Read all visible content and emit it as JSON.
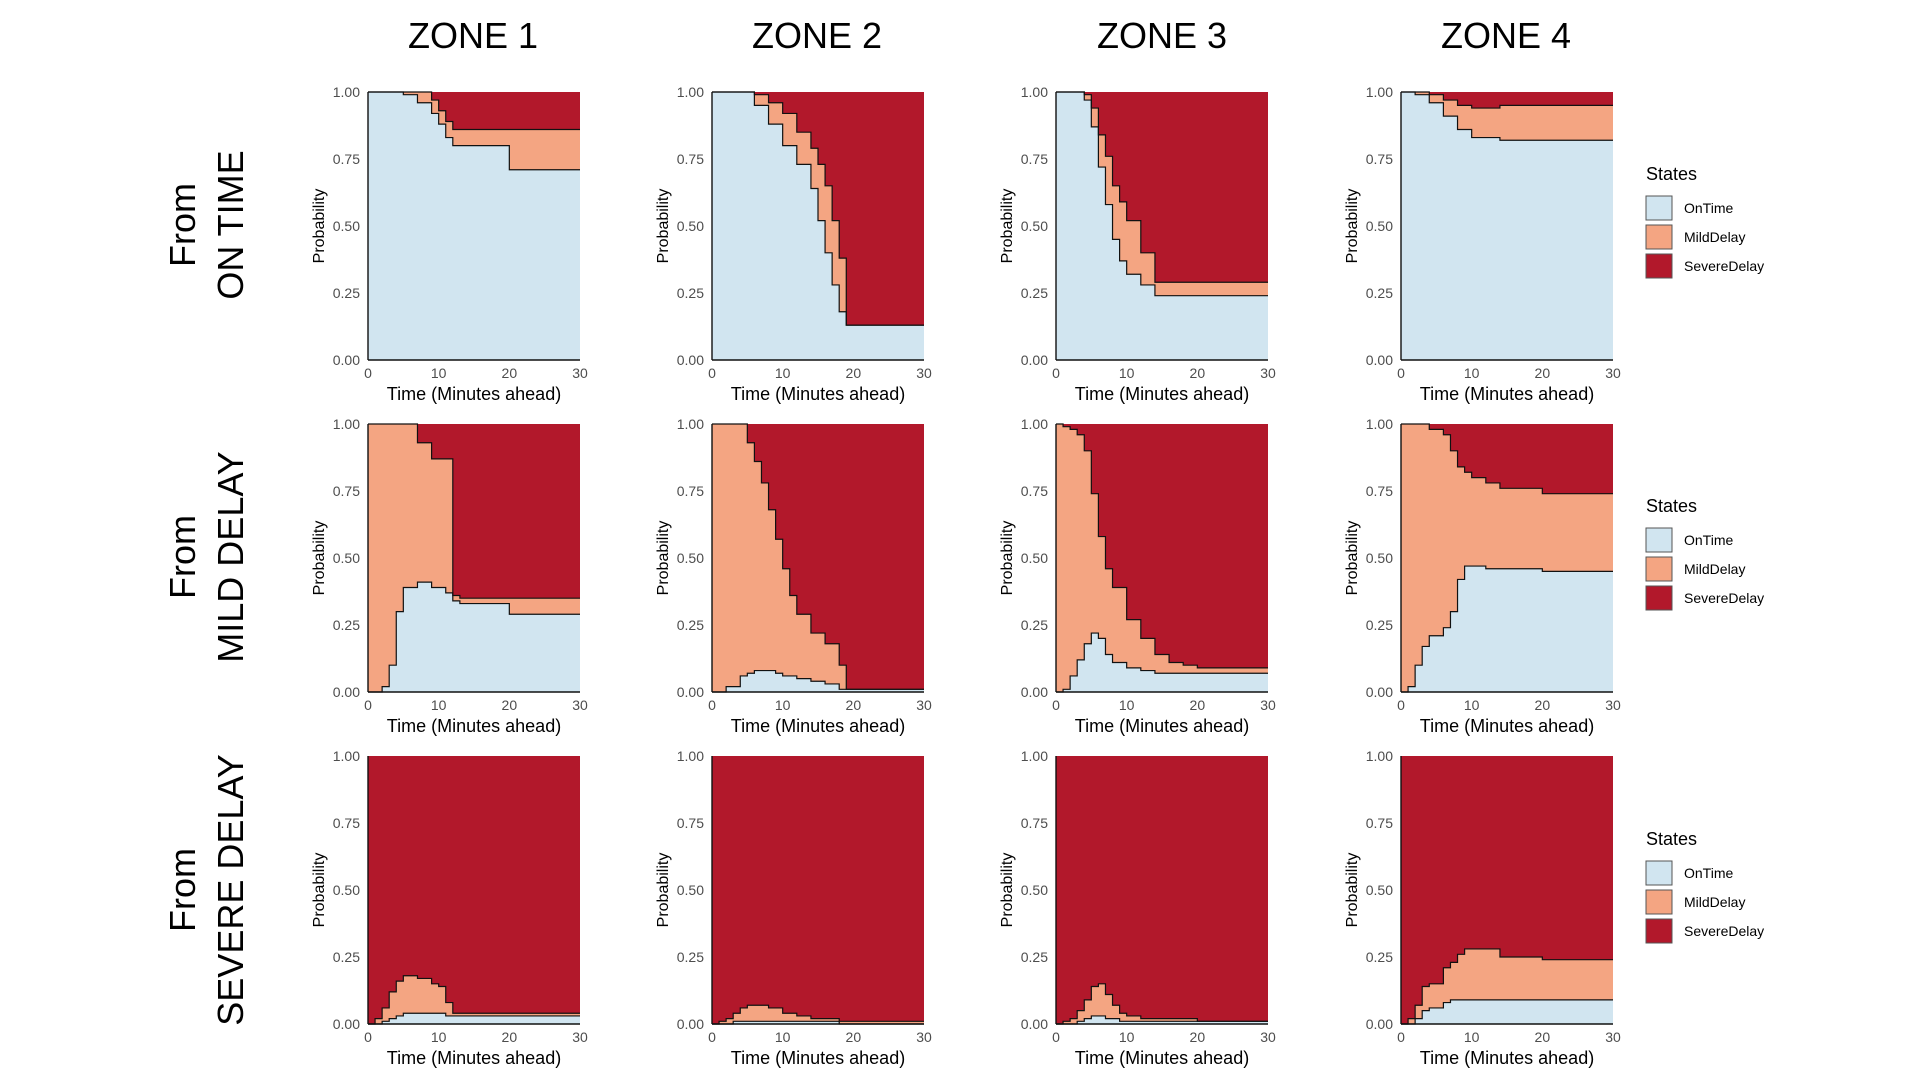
{
  "colors": {
    "OnTime": "#d1e5f0",
    "MildDelay": "#f4a582",
    "SevereDelay": "#b2182b"
  },
  "zones": [
    "ZONE 1",
    "ZONE 2",
    "ZONE 3",
    "ZONE 4"
  ],
  "rows": [
    {
      "line1": "From",
      "line2": "ON TIME"
    },
    {
      "line1": "From",
      "line2": "MILD DELAY"
    },
    {
      "line1": "From",
      "line2": "SEVERE DELAY"
    }
  ],
  "legend": {
    "title": "States",
    "entries": [
      "OnTime",
      "MildDelay",
      "SevereDelay"
    ]
  },
  "chart_data": [
    {
      "type": "area",
      "zone": "ZONE 1",
      "from": "ON TIME",
      "xlabel": "Time (Minutes ahead)",
      "ylabel": "Probability",
      "xlim": [
        0,
        30
      ],
      "ylim": [
        0,
        1
      ],
      "xticks": [
        0,
        10,
        20,
        30
      ],
      "yticks": [
        "0.00",
        "0.25",
        "0.50",
        "0.75",
        "1.00"
      ],
      "x": [
        0,
        3,
        5,
        7,
        9,
        10,
        11,
        12,
        14,
        20,
        30
      ],
      "series": [
        {
          "name": "OnTime",
          "values": [
            1.0,
            1.0,
            0.99,
            0.96,
            0.92,
            0.88,
            0.83,
            0.8,
            0.8,
            0.71,
            0.71
          ]
        },
        {
          "name": "MildDelay",
          "values": [
            0.0,
            0.0,
            0.01,
            0.04,
            0.05,
            0.05,
            0.06,
            0.06,
            0.06,
            0.15,
            0.15
          ]
        },
        {
          "name": "SevereDelay",
          "values": [
            0.0,
            0.0,
            0.0,
            0.0,
            0.03,
            0.07,
            0.11,
            0.14,
            0.14,
            0.14,
            0.14
          ]
        }
      ]
    },
    {
      "type": "area",
      "zone": "ZONE 2",
      "from": "ON TIME",
      "xlabel": "Time (Minutes ahead)",
      "ylabel": "Probability",
      "xlim": [
        0,
        30
      ],
      "ylim": [
        0,
        1
      ],
      "xticks": [
        0,
        10,
        20,
        30
      ],
      "yticks": [
        "0.00",
        "0.25",
        "0.50",
        "0.75",
        "1.00"
      ],
      "x": [
        0,
        4,
        6,
        8,
        10,
        12,
        14,
        15,
        16,
        17,
        18,
        19,
        30
      ],
      "series": [
        {
          "name": "OnTime",
          "values": [
            1.0,
            1.0,
            0.95,
            0.88,
            0.8,
            0.73,
            0.64,
            0.52,
            0.4,
            0.28,
            0.18,
            0.13,
            0.13
          ]
        },
        {
          "name": "MildDelay",
          "values": [
            0.0,
            0.0,
            0.04,
            0.08,
            0.12,
            0.12,
            0.15,
            0.21,
            0.25,
            0.24,
            0.2,
            0.0,
            0.0
          ]
        },
        {
          "name": "SevereDelay",
          "values": [
            0.0,
            0.0,
            0.01,
            0.04,
            0.08,
            0.15,
            0.21,
            0.27,
            0.35,
            0.48,
            0.62,
            0.87,
            0.87
          ]
        }
      ]
    },
    {
      "type": "area",
      "zone": "ZONE 3",
      "from": "ON TIME",
      "xlabel": "Time (Minutes ahead)",
      "ylabel": "Probability",
      "xlim": [
        0,
        30
      ],
      "ylim": [
        0,
        1
      ],
      "xticks": [
        0,
        10,
        20,
        30
      ],
      "yticks": [
        "0.00",
        "0.25",
        "0.50",
        "0.75",
        "1.00"
      ],
      "x": [
        0,
        3,
        4,
        5,
        6,
        7,
        8,
        9,
        10,
        12,
        14,
        30
      ],
      "series": [
        {
          "name": "OnTime",
          "values": [
            1.0,
            1.0,
            0.97,
            0.87,
            0.72,
            0.58,
            0.45,
            0.37,
            0.32,
            0.28,
            0.24,
            0.24
          ]
        },
        {
          "name": "MildDelay",
          "values": [
            0.0,
            0.0,
            0.02,
            0.07,
            0.12,
            0.18,
            0.2,
            0.22,
            0.2,
            0.12,
            0.05,
            0.05
          ]
        },
        {
          "name": "SevereDelay",
          "values": [
            0.0,
            0.0,
            0.01,
            0.06,
            0.16,
            0.24,
            0.35,
            0.41,
            0.48,
            0.6,
            0.71,
            0.71
          ]
        }
      ]
    },
    {
      "type": "area",
      "zone": "ZONE 4",
      "from": "ON TIME",
      "xlabel": "Time (Minutes ahead)",
      "ylabel": "Probability",
      "xlim": [
        0,
        30
      ],
      "ylim": [
        0,
        1
      ],
      "xticks": [
        0,
        10,
        20,
        30
      ],
      "yticks": [
        "0.00",
        "0.25",
        "0.50",
        "0.75",
        "1.00"
      ],
      "x": [
        0,
        2,
        4,
        6,
        8,
        10,
        14,
        30
      ],
      "series": [
        {
          "name": "OnTime",
          "values": [
            1.0,
            0.99,
            0.96,
            0.91,
            0.86,
            0.83,
            0.82,
            0.82
          ]
        },
        {
          "name": "MildDelay",
          "values": [
            0.0,
            0.01,
            0.03,
            0.06,
            0.09,
            0.11,
            0.13,
            0.13
          ]
        },
        {
          "name": "SevereDelay",
          "values": [
            0.0,
            0.0,
            0.01,
            0.03,
            0.05,
            0.06,
            0.05,
            0.05
          ]
        }
      ]
    },
    {
      "type": "area",
      "zone": "ZONE 1",
      "from": "MILD DELAY",
      "xlabel": "Time (Minutes ahead)",
      "ylabel": "Probability",
      "xlim": [
        0,
        30
      ],
      "ylim": [
        0,
        1
      ],
      "xticks": [
        0,
        10,
        20,
        30
      ],
      "yticks": [
        "0.00",
        "0.25",
        "0.50",
        "0.75",
        "1.00"
      ],
      "x": [
        0,
        1,
        2,
        3,
        4,
        5,
        7,
        9,
        11,
        12,
        13,
        20,
        30
      ],
      "series": [
        {
          "name": "OnTime",
          "values": [
            0.0,
            0.0,
            0.02,
            0.1,
            0.3,
            0.39,
            0.41,
            0.39,
            0.37,
            0.34,
            0.33,
            0.29,
            0.29
          ]
        },
        {
          "name": "MildDelay",
          "values": [
            1.0,
            1.0,
            0.98,
            0.9,
            0.7,
            0.61,
            0.52,
            0.48,
            0.5,
            0.02,
            0.02,
            0.06,
            0.06
          ]
        },
        {
          "name": "SevereDelay",
          "values": [
            0.0,
            0.0,
            0.0,
            0.0,
            0.0,
            0.0,
            0.07,
            0.13,
            0.13,
            0.64,
            0.65,
            0.65,
            0.65
          ]
        }
      ]
    },
    {
      "type": "area",
      "zone": "ZONE 2",
      "from": "MILD DELAY",
      "xlabel": "Time (Minutes ahead)",
      "ylabel": "Probability",
      "xlim": [
        0,
        30
      ],
      "ylim": [
        0,
        1
      ],
      "xticks": [
        0,
        10,
        20,
        30
      ],
      "yticks": [
        "0.00",
        "0.25",
        "0.50",
        "0.75",
        "1.00"
      ],
      "x": [
        0,
        2,
        4,
        5,
        6,
        7,
        8,
        9,
        10,
        11,
        12,
        14,
        16,
        18,
        19,
        20,
        30
      ],
      "series": [
        {
          "name": "OnTime",
          "values": [
            0.0,
            0.02,
            0.06,
            0.07,
            0.08,
            0.08,
            0.08,
            0.07,
            0.06,
            0.06,
            0.05,
            0.04,
            0.03,
            0.01,
            0.01,
            0.01,
            0.01
          ]
        },
        {
          "name": "MildDelay",
          "values": [
            1.0,
            0.98,
            0.94,
            0.86,
            0.78,
            0.7,
            0.6,
            0.5,
            0.4,
            0.3,
            0.24,
            0.18,
            0.15,
            0.09,
            0.0,
            0.0,
            0.0
          ]
        },
        {
          "name": "SevereDelay",
          "values": [
            0.0,
            0.0,
            0.0,
            0.07,
            0.14,
            0.22,
            0.32,
            0.43,
            0.54,
            0.64,
            0.71,
            0.78,
            0.82,
            0.9,
            0.99,
            0.99,
            0.99
          ]
        }
      ]
    },
    {
      "type": "area",
      "zone": "ZONE 3",
      "from": "MILD DELAY",
      "xlabel": "Time (Minutes ahead)",
      "ylabel": "Probability",
      "xlim": [
        0,
        30
      ],
      "ylim": [
        0,
        1
      ],
      "xticks": [
        0,
        10,
        20,
        30
      ],
      "yticks": [
        "0.00",
        "0.25",
        "0.50",
        "0.75",
        "1.00"
      ],
      "x": [
        0,
        1,
        2,
        3,
        4,
        5,
        6,
        7,
        8,
        10,
        12,
        14,
        16,
        18,
        20,
        30
      ],
      "series": [
        {
          "name": "OnTime",
          "values": [
            0.0,
            0.01,
            0.06,
            0.12,
            0.18,
            0.22,
            0.2,
            0.14,
            0.11,
            0.09,
            0.08,
            0.07,
            0.07,
            0.07,
            0.07,
            0.07
          ]
        },
        {
          "name": "MildDelay",
          "values": [
            1.0,
            0.98,
            0.92,
            0.84,
            0.72,
            0.52,
            0.38,
            0.32,
            0.28,
            0.18,
            0.12,
            0.07,
            0.04,
            0.03,
            0.02,
            0.02
          ]
        },
        {
          "name": "SevereDelay",
          "values": [
            0.0,
            0.01,
            0.02,
            0.04,
            0.1,
            0.26,
            0.42,
            0.54,
            0.61,
            0.73,
            0.8,
            0.86,
            0.89,
            0.9,
            0.91,
            0.91
          ]
        }
      ]
    },
    {
      "type": "area",
      "zone": "ZONE 4",
      "from": "MILD DELAY",
      "xlabel": "Time (Minutes ahead)",
      "ylabel": "Probability",
      "xlim": [
        0,
        30
      ],
      "ylim": [
        0,
        1
      ],
      "xticks": [
        0,
        10,
        20,
        30
      ],
      "yticks": [
        "0.00",
        "0.25",
        "0.50",
        "0.75",
        "1.00"
      ],
      "x": [
        0,
        1,
        2,
        3,
        4,
        6,
        7,
        8,
        9,
        10,
        12,
        14,
        20,
        30
      ],
      "series": [
        {
          "name": "OnTime",
          "values": [
            0.0,
            0.02,
            0.1,
            0.17,
            0.21,
            0.24,
            0.3,
            0.42,
            0.47,
            0.47,
            0.46,
            0.46,
            0.45,
            0.45
          ]
        },
        {
          "name": "MildDelay",
          "values": [
            1.0,
            0.98,
            0.9,
            0.83,
            0.77,
            0.72,
            0.6,
            0.42,
            0.35,
            0.33,
            0.32,
            0.3,
            0.29,
            0.29
          ]
        },
        {
          "name": "SevereDelay",
          "values": [
            0.0,
            0.0,
            0.0,
            0.0,
            0.02,
            0.04,
            0.1,
            0.16,
            0.18,
            0.2,
            0.22,
            0.24,
            0.26,
            0.26
          ]
        }
      ]
    },
    {
      "type": "area",
      "zone": "ZONE 1",
      "from": "SEVERE DELAY",
      "xlabel": "Time (Minutes ahead)",
      "ylabel": "Probability",
      "xlim": [
        0,
        30
      ],
      "ylim": [
        0,
        1
      ],
      "xticks": [
        0,
        10,
        20,
        30
      ],
      "yticks": [
        "0.00",
        "0.25",
        "0.50",
        "0.75",
        "1.00"
      ],
      "x": [
        0,
        1,
        2,
        3,
        4,
        5,
        7,
        9,
        10,
        11,
        12,
        13,
        20,
        30
      ],
      "series": [
        {
          "name": "OnTime",
          "values": [
            0.0,
            0.0,
            0.01,
            0.02,
            0.03,
            0.04,
            0.04,
            0.04,
            0.04,
            0.03,
            0.03,
            0.03,
            0.03,
            0.03
          ]
        },
        {
          "name": "MildDelay",
          "values": [
            0.0,
            0.02,
            0.05,
            0.1,
            0.13,
            0.14,
            0.13,
            0.11,
            0.1,
            0.05,
            0.01,
            0.01,
            0.01,
            0.01
          ]
        },
        {
          "name": "SevereDelay",
          "values": [
            1.0,
            0.98,
            0.94,
            0.88,
            0.84,
            0.82,
            0.83,
            0.85,
            0.86,
            0.92,
            0.96,
            0.96,
            0.96,
            0.96
          ]
        }
      ]
    },
    {
      "type": "area",
      "zone": "ZONE 2",
      "from": "SEVERE DELAY",
      "xlabel": "Time (Minutes ahead)",
      "ylabel": "Probability",
      "xlim": [
        0,
        30
      ],
      "ylim": [
        0,
        1
      ],
      "xticks": [
        0,
        10,
        20,
        30
      ],
      "yticks": [
        "0.00",
        "0.25",
        "0.50",
        "0.75",
        "1.00"
      ],
      "x": [
        0,
        1,
        2,
        3,
        4,
        5,
        6,
        8,
        10,
        12,
        14,
        16,
        18,
        20,
        30
      ],
      "series": [
        {
          "name": "OnTime",
          "values": [
            0.0,
            0.0,
            0.0,
            0.01,
            0.01,
            0.01,
            0.01,
            0.01,
            0.01,
            0.01,
            0.01,
            0.01,
            0.0,
            0.0,
            0.0
          ]
        },
        {
          "name": "MildDelay",
          "values": [
            0.0,
            0.01,
            0.02,
            0.03,
            0.05,
            0.06,
            0.06,
            0.05,
            0.03,
            0.02,
            0.01,
            0.01,
            0.01,
            0.01,
            0.01
          ]
        },
        {
          "name": "SevereDelay",
          "values": [
            1.0,
            0.99,
            0.98,
            0.96,
            0.94,
            0.93,
            0.93,
            0.94,
            0.96,
            0.97,
            0.98,
            0.98,
            0.99,
            0.99,
            0.99
          ]
        }
      ]
    },
    {
      "type": "area",
      "zone": "ZONE 3",
      "from": "SEVERE DELAY",
      "xlabel": "Time (Minutes ahead)",
      "ylabel": "Probability",
      "xlim": [
        0,
        30
      ],
      "ylim": [
        0,
        1
      ],
      "xticks": [
        0,
        10,
        20,
        30
      ],
      "yticks": [
        "0.00",
        "0.25",
        "0.50",
        "0.75",
        "1.00"
      ],
      "x": [
        0,
        1,
        2,
        3,
        4,
        5,
        6,
        7,
        8,
        9,
        10,
        12,
        14,
        20,
        30
      ],
      "series": [
        {
          "name": "OnTime",
          "values": [
            0.0,
            0.0,
            0.0,
            0.01,
            0.02,
            0.03,
            0.03,
            0.02,
            0.02,
            0.01,
            0.01,
            0.01,
            0.01,
            0.01,
            0.01
          ]
        },
        {
          "name": "MildDelay",
          "values": [
            0.0,
            0.01,
            0.02,
            0.04,
            0.07,
            0.11,
            0.12,
            0.09,
            0.05,
            0.03,
            0.02,
            0.01,
            0.01,
            0.0,
            0.0
          ]
        },
        {
          "name": "SevereDelay",
          "values": [
            1.0,
            0.99,
            0.98,
            0.95,
            0.91,
            0.86,
            0.85,
            0.89,
            0.93,
            0.96,
            0.97,
            0.98,
            0.98,
            0.99,
            0.99
          ]
        }
      ]
    },
    {
      "type": "area",
      "zone": "ZONE 4",
      "from": "SEVERE DELAY",
      "xlabel": "Time (Minutes ahead)",
      "ylabel": "Probability",
      "xlim": [
        0,
        30
      ],
      "ylim": [
        0,
        1
      ],
      "xticks": [
        0,
        10,
        20,
        30
      ],
      "yticks": [
        "0.00",
        "0.25",
        "0.50",
        "0.75",
        "1.00"
      ],
      "x": [
        0,
        1,
        2,
        3,
        4,
        6,
        7,
        8,
        9,
        10,
        14,
        20,
        30
      ],
      "series": [
        {
          "name": "OnTime",
          "values": [
            0.0,
            0.0,
            0.02,
            0.05,
            0.06,
            0.08,
            0.09,
            0.09,
            0.09,
            0.09,
            0.09,
            0.09,
            0.09
          ]
        },
        {
          "name": "MildDelay",
          "values": [
            0.0,
            0.02,
            0.05,
            0.09,
            0.09,
            0.13,
            0.14,
            0.17,
            0.19,
            0.19,
            0.16,
            0.15,
            0.15
          ]
        },
        {
          "name": "SevereDelay",
          "values": [
            1.0,
            0.98,
            0.93,
            0.86,
            0.85,
            0.79,
            0.77,
            0.74,
            0.72,
            0.72,
            0.75,
            0.76,
            0.76
          ]
        }
      ]
    }
  ]
}
